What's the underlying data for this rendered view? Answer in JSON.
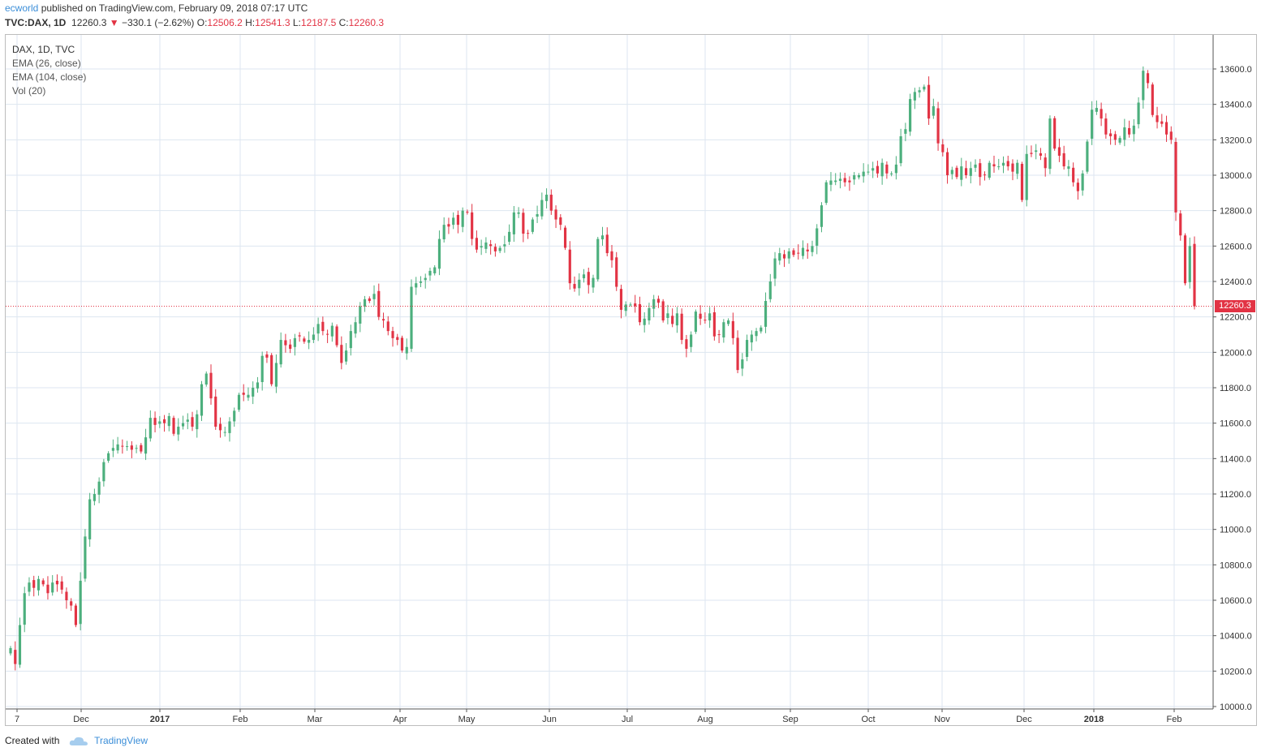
{
  "header": {
    "user": "ecworld",
    "published_text": "published on TradingView.com, February 09, 2018 07:17 UTC",
    "symbol": "TVC:DAX, 1D",
    "last": "12260.3",
    "change": "−330.1 (−2.62%)",
    "open_label": "O:",
    "open": "12506.2",
    "high_label": "H:",
    "high": "12541.3",
    "low_label": "L:",
    "low": "12187.5",
    "close_label": "C:",
    "close": "12260.3"
  },
  "legend": {
    "title": "DAX, 1D, TVC",
    "ema26": "EMA (26, close)",
    "ema104": "EMA (104, close)",
    "vol": "Vol (20)"
  },
  "price_tag": "12260.3",
  "footer": {
    "created_with": "Created with",
    "brand": "TradingView"
  },
  "colors": {
    "up": "#4caf7d",
    "down": "#e23344",
    "grid": "#dde6f0",
    "axis_text": "#333333"
  },
  "chart_data": {
    "type": "candlestick",
    "title": "DAX, 1D, TVC",
    "xlabel": "",
    "ylabel": "",
    "ylim": [
      10000,
      13700
    ],
    "y_ticks": [
      "13600.0",
      "13400.0",
      "13200.0",
      "13000.0",
      "12800.0",
      "12600.0",
      "12400.0",
      "12200.0",
      "12000.0",
      "11800.0",
      "11600.0",
      "11400.0",
      "11200.0",
      "11000.0",
      "10800.0",
      "10600.0",
      "10400.0",
      "10200.0",
      "10000.0"
    ],
    "x_ticks": [
      "7",
      "Dec",
      "2017",
      "Feb",
      "Mar",
      "Apr",
      "May",
      "Jun",
      "Jul",
      "Aug",
      "Sep",
      "Oct",
      "Nov",
      "Dec",
      "2018",
      "Feb"
    ],
    "x_tick_bold": [
      "2017",
      "2018"
    ],
    "last_price_line": 12260.3,
    "grid": true,
    "closes": [
      10330,
      10240,
      10460,
      10640,
      10700,
      10670,
      10720,
      10690,
      10640,
      10700,
      10690,
      10660,
      10600,
      10570,
      10460,
      10710,
      10960,
      11170,
      11200,
      11270,
      11380,
      11430,
      11460,
      11480,
      11470,
      11470,
      11450,
      11460,
      11440,
      11520,
      11630,
      11590,
      11610,
      11600,
      11640,
      11540,
      11580,
      11600,
      11620,
      11580,
      11650,
      11820,
      11880,
      11740,
      11580,
      11560,
      11550,
      11610,
      11670,
      11760,
      11760,
      11760,
      11800,
      11830,
      11980,
      11970,
      11820,
      11940,
      12070,
      12040,
      12020,
      12080,
      12090,
      12060,
      12070,
      12100,
      12160,
      12120,
      12100,
      12150,
      12040,
      11940,
      12010,
      12120,
      12170,
      12260,
      12300,
      12290,
      12330,
      12200,
      12180,
      12120,
      12080,
      12070,
      12010,
      12030,
      12370,
      12390,
      12400,
      12420,
      12460,
      12480,
      12640,
      12720,
      12710,
      12760,
      12720,
      12800,
      12790,
      12640,
      12580,
      12600,
      12620,
      12600,
      12570,
      12590,
      12610,
      12680,
      12790,
      12790,
      12670,
      12670,
      12750,
      12780,
      12860,
      12890,
      12800,
      12750,
      12720,
      12590,
      12390,
      12360,
      12410,
      12440,
      12380,
      12420,
      12640,
      12660,
      12560,
      12520,
      12370,
      12240,
      12270,
      12270,
      12260,
      12170,
      12190,
      12250,
      12300,
      12280,
      12180,
      12220,
      12160,
      12220,
      12070,
      12020,
      12100,
      12230,
      12190,
      12180,
      12220,
      12090,
      12100,
      12170,
      12180,
      12080,
      11900,
      11960,
      12070,
      12100,
      12120,
      12140,
      12290,
      12400,
      12530,
      12560,
      12530,
      12570,
      12550,
      12560,
      12590,
      12570,
      12600,
      12700,
      12830,
      12960,
      12970,
      12970,
      12980,
      12960,
      12960,
      13000,
      13000,
      13020,
      13020,
      13040,
      13010,
      13070,
      13010,
      13010,
      13060,
      13220,
      13260,
      13430,
      13470,
      13480,
      13500,
      13320,
      13390,
      13180,
      13130,
      13000,
      13030,
      12990,
      13050,
      13000,
      13040,
      13060,
      12990,
      13000,
      13070,
      13050,
      13050,
      13070,
      13050,
      13020,
      13070,
      12860,
      13120,
      13120,
      13140,
      13110,
      13040,
      13320,
      13150,
      13110,
      13050,
      13050,
      12960,
      12910,
      13010,
      13190,
      13370,
      13380,
      13320,
      13230,
      13220,
      13200,
      13210,
      13270,
      13230,
      13280,
      13410,
      13590,
      13520,
      13340,
      13300,
      13290,
      13230,
      13200,
      12790,
      12660,
      12390,
      12600,
      12260
    ]
  }
}
